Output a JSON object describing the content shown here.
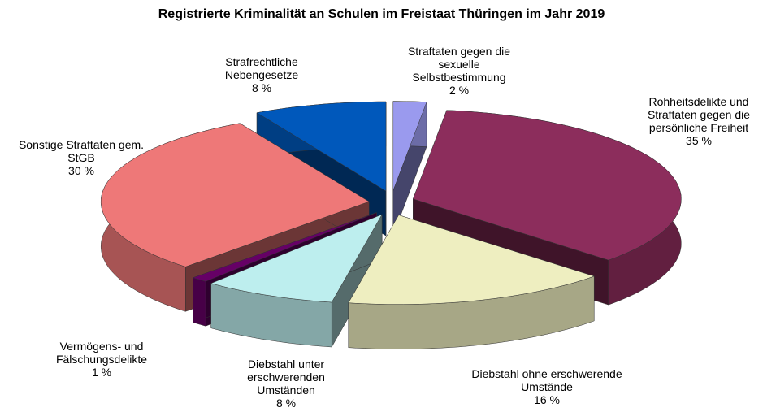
{
  "chart_data": {
    "type": "pie",
    "title": "Registrierte Kriminalität  an Schulen im Freistaat Thüringen im Jahr 2019",
    "categories": [
      "Straftaten gegen die sexuelle Selbstbestimmung",
      "Rohheitsdelikte und Straftaten gegen die persönliche Freiheit",
      "Diebstahl ohne erschwerende Umstände",
      "Diebstahl unter erschwerenden Umständen",
      "Vermögens- und Fälschungsdelikte",
      "Sonstige Straftaten gem. StGB",
      "Strafrechtliche Nebengesetze"
    ],
    "values": [
      2,
      35,
      16,
      8,
      1,
      30,
      8
    ],
    "value_labels": [
      "2 %",
      "35 %",
      "16 %",
      "8 %",
      "1 %",
      "30 %",
      "8 %"
    ],
    "colors": [
      "#9a9aee",
      "#8c2d5c",
      "#eeeec0",
      "#bdeeee",
      "#660066",
      "#ee7878",
      "#0058bb"
    ]
  }
}
